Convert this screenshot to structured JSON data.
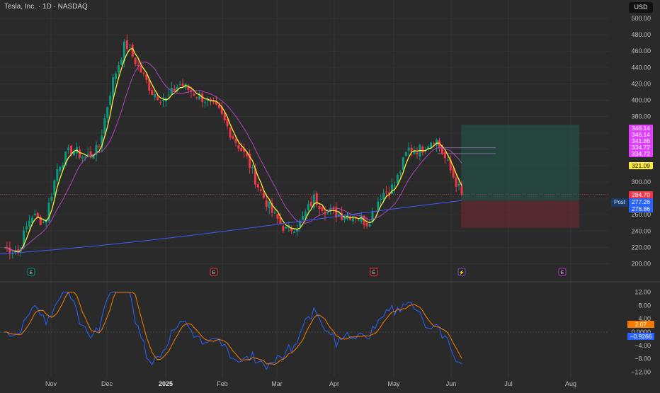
{
  "header": {
    "title": "Tesla, Inc. · 1D · NASDAQ",
    "currency": "USD"
  },
  "price_axis": {
    "ticks": [
      "500.00",
      "480.00",
      "460.00",
      "440.00",
      "420.00",
      "400.00",
      "380.00",
      "360.00",
      "340.00",
      "320.00",
      "300.00",
      "280.00",
      "260.00",
      "240.00",
      "220.00",
      "200.00"
    ]
  },
  "osc_axis": {
    "ticks": [
      "12.00",
      "8.00",
      "4.00",
      "0.0000",
      "−4.00",
      "−8.00",
      "−12.00"
    ]
  },
  "time_axis": {
    "ticks": [
      "Nov",
      "Dec",
      "2025",
      "Feb",
      "Mar",
      "Apr",
      "May",
      "Jun",
      "Jul",
      "Aug"
    ]
  },
  "price_tags": [
    {
      "label": "346.14",
      "color": "#e040fb"
    },
    {
      "label": "346.14",
      "color": "#e040fb"
    },
    {
      "label": "341.86",
      "color": "#e040fb"
    },
    {
      "label": "334.72",
      "color": "#e040fb"
    },
    {
      "label": "334.72",
      "color": "#e040fb"
    },
    {
      "label": "321.09",
      "color": "#ffeb3b"
    },
    {
      "label": "284.70",
      "color": "#f23645"
    },
    {
      "label": "277.26",
      "color": "#2962ff"
    },
    {
      "label": "276.86",
      "color": "#2962ff"
    }
  ],
  "post_label": "Post",
  "osc_tags": [
    {
      "label": "2.07",
      "color": "#f57c00"
    },
    {
      "label": "−0.9266",
      "color": "#2962ff"
    }
  ],
  "event_markers": [
    "E",
    "E",
    "E",
    "⚡",
    "E"
  ],
  "colors": {
    "up": "#089981",
    "down": "#f23645",
    "ma_fast": "#ffeb3b",
    "ma_mid": "#ab47bc",
    "ma_slow": "#3d5afe",
    "osc_fast": "#2962ff",
    "osc_slow": "#f57c00"
  },
  "chart_data": {
    "type": "line",
    "title": "Tesla, Inc. · 1D · NASDAQ",
    "price_range": [
      200,
      500
    ],
    "oscillator_range": [
      -12,
      12
    ],
    "series": [
      {
        "x": [
          "2024-10-15",
          "2024-10-22",
          "2024-10-29",
          "2024-11-05",
          "2024-11-12",
          "2024-11-19",
          "2024-11-26",
          "2024-12-03",
          "2024-12-10",
          "2024-12-17",
          "2024-12-24",
          "2024-12-31",
          "2025-01-07",
          "2025-01-14",
          "2025-01-21",
          "2025-01-28",
          "2025-02-04",
          "2025-02-11",
          "2025-02-18",
          "2025-02-25",
          "2025-03-04",
          "2025-03-11",
          "2025-03-18",
          "2025-03-25",
          "2025-04-01",
          "2025-04-08",
          "2025-04-15",
          "2025-04-22",
          "2025-04-29",
          "2025-05-06",
          "2025-05-13",
          "2025-05-20",
          "2025-05-27",
          "2025-06-03",
          "2025-06-05"
        ],
        "values": [
          220,
          215,
          260,
          250,
          320,
          340,
          330,
          340,
          420,
          470,
          440,
          410,
          400,
          420,
          410,
          400,
          385,
          355,
          330,
          290,
          260,
          240,
          250,
          280,
          265,
          260,
          260,
          250,
          285,
          295,
          340,
          340,
          355,
          320,
          284.7
        ]
      }
    ],
    "position_box": {
      "entry": 277.26,
      "target": 370,
      "stop": 244,
      "start": "2025-06-05",
      "end": "2025-08-05"
    }
  }
}
